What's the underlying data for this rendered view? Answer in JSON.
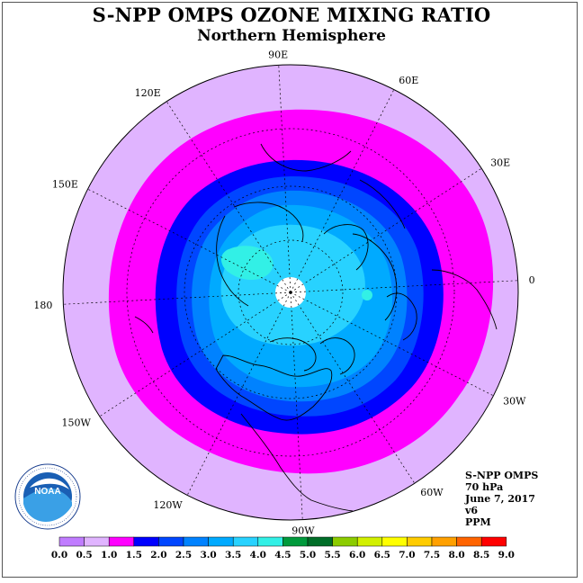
{
  "title": "S-NPP OMPS OZONE MIXING RATIO",
  "subtitle": "Northern Hemisphere",
  "longitude_labels": [
    "90E",
    "60E",
    "30E",
    "0",
    "30W",
    "60W",
    "90W",
    "120W",
    "150W",
    "180",
    "150E",
    "120E"
  ],
  "info": {
    "line1": "S-NPP OMPS",
    "line2": "70 hPa",
    "line3": "June 7, 2017",
    "line4": "v6",
    "line5": "PPM"
  },
  "logo_text": "NOAA",
  "colorbar": {
    "labels": [
      "0.0",
      "0.5",
      "1.0",
      "1.5",
      "2.0",
      "2.5",
      "3.0",
      "3.5",
      "4.0",
      "4.5",
      "5.0",
      "5.5",
      "6.0",
      "6.5",
      "7.0",
      "7.5",
      "8.0",
      "8.5",
      "9.0"
    ],
    "colors": [
      "#c07cff",
      "#e0b4ff",
      "#ff00ff",
      "#0000ff",
      "#0046ff",
      "#0082ff",
      "#00aaff",
      "#28d2ff",
      "#32f0e6",
      "#009a3c",
      "#006e28",
      "#8ccc00",
      "#d2f000",
      "#ffff00",
      "#ffcc00",
      "#ffa000",
      "#ff6400",
      "#ff0000",
      "#8c5a3c"
    ]
  },
  "map_colors": {
    "background_ring": "#e0b4ff",
    "magenta": "#ff00ff",
    "blue": "#0000ff",
    "medium_blue": "#0046ff",
    "light_blue": "#0082ff",
    "sky": "#00aaff",
    "cyan": "#28d2ff",
    "aqua": "#32f0e6",
    "pole_gap": "#ffffff"
  }
}
